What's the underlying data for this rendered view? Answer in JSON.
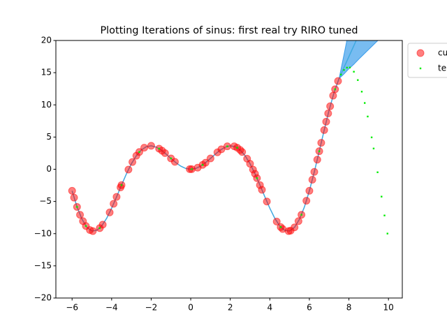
{
  "chart_data": {
    "type": "line",
    "title": "Plotting Iterations of sinus: first real try RIRO tuned",
    "xlim": [
      -6.82,
      10.7
    ],
    "ylim": [
      -20,
      20
    ],
    "xticks": [
      {
        "value": -6,
        "label": "−6"
      },
      {
        "value": -4,
        "label": "−4"
      },
      {
        "value": -2,
        "label": "−2"
      },
      0,
      2,
      4,
      6,
      8,
      10
    ],
    "yticks": [
      {
        "value": -20,
        "label": "−20"
      },
      {
        "value": -15,
        "label": "−15"
      },
      {
        "value": -10,
        "label": "−10"
      },
      {
        "value": -5,
        "label": "−5"
      },
      0,
      5,
      10,
      15,
      20
    ],
    "grid": false,
    "band": {
      "color": "#1e8fe8",
      "x": [
        7.25,
        7.5,
        7.75,
        8.0,
        8.25,
        8.5,
        9.0,
        9.5
      ],
      "lower": [
        11.93,
        14.07,
        14.8,
        15.6,
        16.3,
        17.1,
        18.6,
        20.1
      ],
      "upper": [
        11.93,
        14.07,
        17.8,
        21.6,
        25.3,
        29,
        36.5,
        44
      ]
    },
    "line": {
      "color": "#3fa9e0",
      "x": [
        -6,
        -5.75,
        -5.5,
        -5.25,
        -5,
        -4.75,
        -4.5,
        -4.25,
        -4,
        -3.75,
        -3.5,
        -3.25,
        -3,
        -2.75,
        -2.5,
        -2.25,
        -2,
        -1.75,
        -1.5,
        -1.25,
        -1,
        -0.75,
        -0.5,
        -0.25,
        0,
        0.25,
        0.5,
        0.75,
        1,
        1.25,
        1.5,
        1.75,
        2,
        2.25,
        2.5,
        2.75,
        3,
        3.25,
        3.5,
        3.75,
        4,
        4.25,
        4.5,
        4.75,
        5,
        5.25,
        5.5,
        5.75,
        6,
        6.25,
        6.5,
        6.75,
        7,
        7.25,
        7.5,
        7.75,
        8,
        8.25,
        8.5
      ],
      "values": [
        -3.35,
        -5.85,
        -7.76,
        -9.02,
        -9.59,
        -9.49,
        -8.8,
        -7.61,
        -6.05,
        -4.29,
        -2.46,
        -0.7,
        0.85,
        2.1,
        2.99,
        3.5,
        3.64,
        3.44,
        2.99,
        2.37,
        1.68,
        1.02,
        0.48,
        0.12,
        0,
        0.12,
        0.48,
        1.02,
        1.68,
        2.37,
        2.99,
        3.44,
        3.64,
        3.5,
        2.99,
        2.1,
        0.85,
        -0.7,
        -2.46,
        -4.29,
        -6.05,
        -7.61,
        -8.8,
        -9.49,
        -9.59,
        -9.02,
        -7.76,
        -5.85,
        -3.35,
        -0.41,
        2.8,
        6.08,
        9.2,
        11.93,
        14.07,
        15.8,
        17.5,
        19.2,
        20.9
      ]
    },
    "series": [
      {
        "name": "cu",
        "color": "#ff0000",
        "marker": "circle",
        "x": [
          -6,
          -5.9,
          -5.75,
          -5.6,
          -5.45,
          -5.3,
          -5.1,
          -4.95,
          -4.6,
          -4.45,
          -4.1,
          -3.9,
          -3.75,
          -3.55,
          -3.5,
          -3.15,
          -2.95,
          -2.75,
          -2.6,
          -2.35,
          -2,
          -1.6,
          -1.45,
          -1.3,
          -1,
          -0.8,
          -0.05,
          0.05,
          0.35,
          0.6,
          0.75,
          1,
          1.35,
          1.55,
          1.85,
          2.2,
          2.35,
          2.5,
          2.6,
          2.85,
          3,
          3.15,
          3.25,
          3.35,
          3.5,
          3.6,
          3.85,
          4.35,
          4.55,
          4.65,
          4.95,
          5.05,
          5.25,
          5.45,
          5.6,
          5.85,
          6,
          6.15,
          6.25,
          6.4,
          6.5,
          6.6,
          6.75,
          6.85,
          6.95,
          7.05,
          7.2,
          7.3,
          7.45
        ],
        "values": [
          -3.35,
          -4.41,
          -5.85,
          -7.07,
          -8.06,
          -8.82,
          -9.44,
          -9.61,
          -9.14,
          -8.6,
          -6.71,
          -5.36,
          -4.29,
          -2.82,
          -2.46,
          -0.05,
          1.12,
          2.1,
          2.68,
          3.35,
          3.64,
          3.2,
          2.88,
          2.51,
          1.68,
          1.15,
          0.01,
          0.01,
          0.24,
          0.68,
          1.02,
          1.68,
          2.63,
          3.1,
          3.56,
          3.56,
          3.35,
          2.99,
          2.68,
          1.64,
          0.85,
          -0.05,
          -0.7,
          -1.38,
          -2.46,
          -3.19,
          -5.01,
          -8.13,
          -8.98,
          -9.28,
          -9.61,
          -9.54,
          -9.02,
          -8.06,
          -7.07,
          -4.89,
          -3.35,
          -1.63,
          -0.41,
          1.49,
          2.8,
          4.11,
          6.08,
          7.39,
          8.67,
          9.78,
          11.43,
          12.42,
          13.7
        ]
      },
      {
        "name": "te",
        "color": "#00ee00",
        "marker": "square",
        "x": [
          -5.75,
          -5.3,
          -4.6,
          -3.5,
          -2.6,
          -1.6,
          -1,
          0.05,
          0.6,
          1.85,
          2.35,
          3.35,
          4.55,
          5.6,
          6.5,
          7.3,
          7.6,
          7.75,
          7.9,
          8.05,
          8.25,
          8.45,
          8.65,
          8.8,
          8.95,
          9.15,
          9.25,
          9.45,
          9.65,
          9.8,
          9.95
        ],
        "values": [
          -5.85,
          -8.82,
          -9.14,
          -2.46,
          2.68,
          3.2,
          1.68,
          0.01,
          0.68,
          3.56,
          3.35,
          -1.38,
          -8.98,
          -7.07,
          2.8,
          12.42,
          14.71,
          15.42,
          15.78,
          15.8,
          15.15,
          13.85,
          12.05,
          10.29,
          8.19,
          4.95,
          3.22,
          -0.47,
          -4.25,
          -7.18,
          -9.99
        ]
      }
    ]
  }
}
